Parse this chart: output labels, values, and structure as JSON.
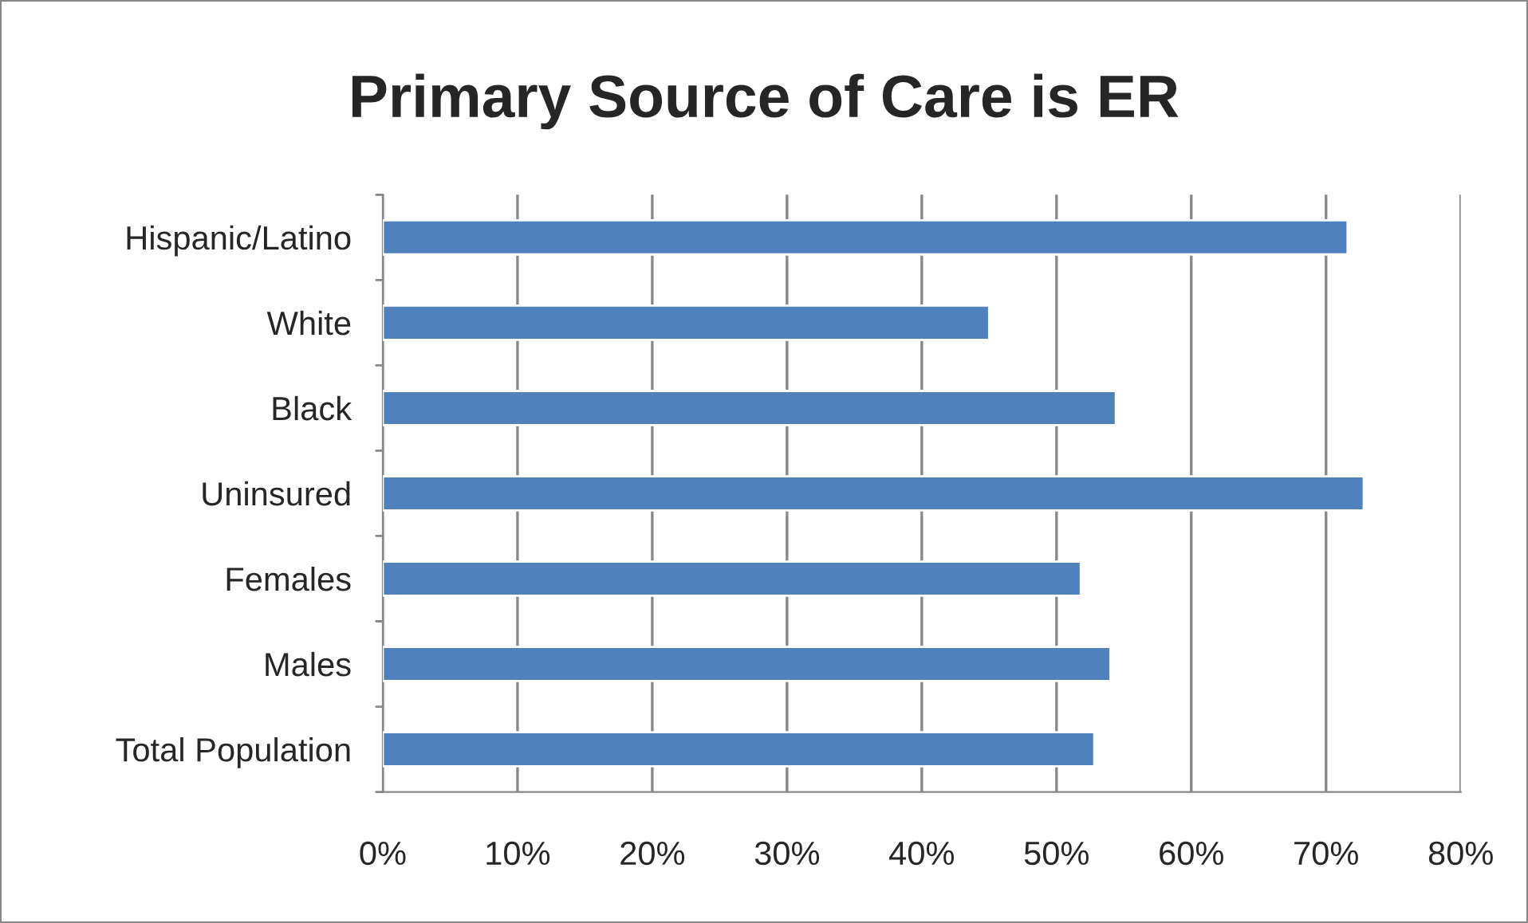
{
  "chart_data": {
    "type": "bar",
    "orientation": "horizontal",
    "title": "Primary Source of Care is ER",
    "categories": [
      "Hispanic/Latino",
      "White",
      "Black",
      "Uninsured",
      "Females",
      "Males",
      "Total Population"
    ],
    "values": [
      71.6,
      45.0,
      54.4,
      72.8,
      51.8,
      54.0,
      52.8
    ],
    "color": "#4f81bd",
    "xlim": [
      0,
      80
    ],
    "xticks": [
      {
        "value": 0,
        "label": "0%"
      },
      {
        "value": 10,
        "label": "10%"
      },
      {
        "value": 20,
        "label": "20%"
      },
      {
        "value": 30,
        "label": "30%"
      },
      {
        "value": 40,
        "label": "40%"
      },
      {
        "value": 50,
        "label": "50%"
      },
      {
        "value": 60,
        "label": "60%"
      },
      {
        "value": 70,
        "label": "70%"
      },
      {
        "value": 80,
        "label": "80%"
      }
    ],
    "grid": "x",
    "legend": false
  }
}
